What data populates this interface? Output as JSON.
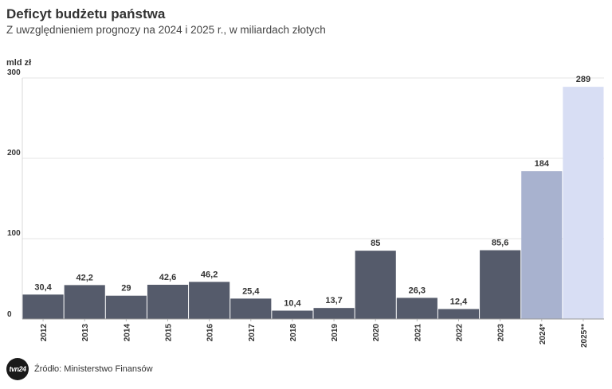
{
  "header": {
    "title": "Deficyt budżetu państwa",
    "subtitle": "Z uwzględnieniem prognozy na 2024 i 2025 r., w miliardach złotych",
    "unit_label": "mld zł"
  },
  "footer": {
    "logo_text": "tvn24",
    "source": "Źródło: Ministerstwo Finansów"
  },
  "chart_data": {
    "type": "bar",
    "title": "Deficyt budżetu państwa",
    "ylabel": "mld zł",
    "xlabel": "",
    "ylim": [
      0,
      300
    ],
    "yticks": [
      0,
      100,
      200,
      300
    ],
    "grid": true,
    "categories": [
      "2012",
      "2013",
      "2014",
      "2015",
      "2016",
      "2017",
      "2018",
      "2019",
      "2020",
      "2021",
      "2022",
      "2023",
      "2024*",
      "2025**"
    ],
    "values": [
      30.4,
      42.2,
      29,
      42.6,
      46.2,
      25.4,
      10.4,
      13.7,
      85,
      26.3,
      12.4,
      85.6,
      184,
      289
    ],
    "labels": [
      "30,4",
      "42,2",
      "29",
      "42,6",
      "46,2",
      "25,4",
      "10,4",
      "13,7",
      "85",
      "26,3",
      "12,4",
      "85,6",
      "184",
      "289"
    ],
    "colors": [
      "#555b6b",
      "#555b6b",
      "#555b6b",
      "#555b6b",
      "#555b6b",
      "#555b6b",
      "#555b6b",
      "#555b6b",
      "#555b6b",
      "#555b6b",
      "#555b6b",
      "#555b6b",
      "#a8b2cf",
      "#d8def4"
    ]
  }
}
